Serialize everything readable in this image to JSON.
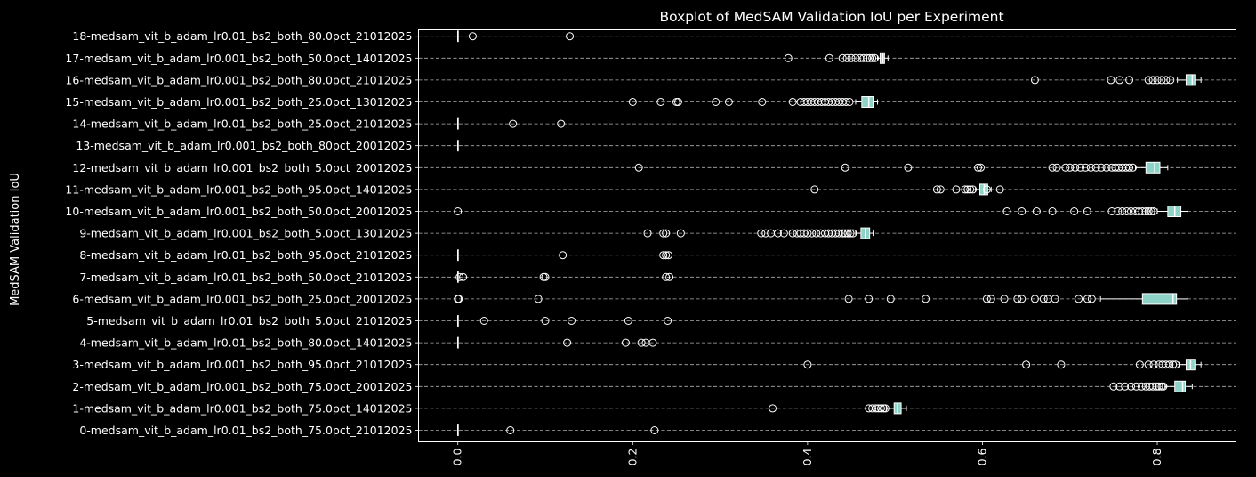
{
  "chart_data": {
    "type": "boxplot",
    "orientation": "horizontal",
    "title": "Boxplot of MedSAM Validation IoU per Experiment",
    "ylabel": "MedSAM Validation IoU",
    "xlabel": "",
    "xlim": [
      -0.045,
      0.89
    ],
    "x_ticks": [
      0.0,
      0.2,
      0.4,
      0.6,
      0.8
    ],
    "x_tick_labels": [
      "0.0",
      "0.2",
      "0.4",
      "0.6",
      "0.8"
    ],
    "x_tick_rotation": 90,
    "grid": "horizontal dashed",
    "box_color": "#8dd3c7",
    "categories": [
      "0-medsam_vit_b_adam_lr0.01_bs2_both_75.0pct_21012025",
      "1-medsam_vit_b_adam_lr0.001_bs2_both_75.0pct_14012025",
      "2-medsam_vit_b_adam_lr0.001_bs2_both_75.0pct_20012025",
      "3-medsam_vit_b_adam_lr0.001_bs2_both_95.0pct_21012025",
      "4-medsam_vit_b_adam_lr0.01_bs2_both_80.0pct_14012025",
      "5-medsam_vit_b_adam_lr0.01_bs2_both_5.0pct_21012025",
      "6-medsam_vit_b_adam_lr0.001_bs2_both_25.0pct_20012025",
      "7-medsam_vit_b_adam_lr0.01_bs2_both_50.0pct_21012025",
      "8-medsam_vit_b_adam_lr0.01_bs2_both_95.0pct_21012025",
      "9-medsam_vit_b_adam_lr0.001_bs2_both_5.0pct_13012025",
      "10-medsam_vit_b_adam_lr0.001_bs2_both_50.0pct_20012025",
      "11-medsam_vit_b_adam_lr0.001_bs2_both_95.0pct_14012025",
      "12-medsam_vit_b_adam_lr0.001_bs2_both_5.0pct_20012025",
      "13-medsam_vit_b_adam_lr0.001_bs2_both_80pct_20012025",
      "14-medsam_vit_b_adam_lr0.01_bs2_both_25.0pct_21012025",
      "15-medsam_vit_b_adam_lr0.001_bs2_both_25.0pct_13012025",
      "16-medsam_vit_b_adam_lr0.001_bs2_both_80.0pct_21012025",
      "17-medsam_vit_b_adam_lr0.001_bs2_both_50.0pct_14012025",
      "18-medsam_vit_b_adam_lr0.01_bs2_both_80.0pct_21012025"
    ],
    "boxes": [
      {
        "whislo": 0.0,
        "q1": 0.0,
        "med": 0.0,
        "q3": 0.0,
        "whishi": 0.0,
        "fliers": [
          0.06,
          0.225
        ]
      },
      {
        "whislo": 0.49,
        "q1": 0.499,
        "med": 0.503,
        "q3": 0.507,
        "whishi": 0.513,
        "fliers": [
          0.36,
          0.47,
          0.474,
          0.478,
          0.481,
          0.484,
          0.487,
          0.489
        ]
      },
      {
        "whislo": 0.81,
        "q1": 0.82,
        "med": 0.829,
        "q3": 0.832,
        "whishi": 0.84,
        "fliers": [
          0.75,
          0.757,
          0.763,
          0.77,
          0.776,
          0.782,
          0.787,
          0.791,
          0.795,
          0.799,
          0.802,
          0.805,
          0.807
        ]
      },
      {
        "whislo": 0.825,
        "q1": 0.833,
        "med": 0.838,
        "q3": 0.843,
        "whishi": 0.85,
        "fliers": [
          0.4,
          0.65,
          0.69,
          0.78,
          0.79,
          0.796,
          0.802,
          0.806,
          0.81,
          0.814,
          0.818,
          0.821
        ]
      },
      {
        "whislo": 0.0,
        "q1": 0.0,
        "med": 0.0,
        "q3": 0.0,
        "whishi": 0.0,
        "fliers": [
          0.125,
          0.192,
          0.21,
          0.215,
          0.223
        ]
      },
      {
        "whislo": 0.0,
        "q1": 0.0,
        "med": 0.0,
        "q3": 0.0,
        "whishi": 0.0,
        "fliers": [
          0.03,
          0.1,
          0.13,
          0.195,
          0.24
        ]
      },
      {
        "whislo": 0.735,
        "q1": 0.783,
        "med": 0.818,
        "q3": 0.822,
        "whishi": 0.835,
        "fliers": [
          0.0,
          0.001,
          0.092,
          0.447,
          0.47,
          0.495,
          0.535,
          0.605,
          0.61,
          0.625,
          0.64,
          0.645,
          0.66,
          0.67,
          0.675,
          0.683,
          0.71,
          0.72,
          0.725
        ]
      },
      {
        "whislo": 0.0,
        "q1": 0.0,
        "med": 0.0,
        "q3": 0.0,
        "whishi": 0.0,
        "fliers": [
          0.002,
          0.006,
          0.098,
          0.1,
          0.238,
          0.242
        ]
      },
      {
        "whislo": 0.0,
        "q1": 0.0,
        "med": 0.0,
        "q3": 0.0,
        "whishi": 0.0,
        "fliers": [
          0.12,
          0.235,
          0.238,
          0.241
        ]
      },
      {
        "whislo": 0.455,
        "q1": 0.461,
        "med": 0.466,
        "q3": 0.471,
        "whishi": 0.475,
        "fliers": [
          0.217,
          0.235,
          0.238,
          0.255,
          0.347,
          0.352,
          0.358,
          0.366,
          0.373,
          0.383,
          0.388,
          0.392,
          0.396,
          0.4,
          0.405,
          0.41,
          0.415,
          0.42,
          0.424,
          0.428,
          0.432,
          0.436,
          0.44,
          0.443,
          0.446,
          0.449,
          0.452
        ]
      },
      {
        "whislo": 0.8,
        "q1": 0.812,
        "med": 0.82,
        "q3": 0.827,
        "whishi": 0.835,
        "fliers": [
          0.0,
          0.628,
          0.645,
          0.662,
          0.68,
          0.705,
          0.72,
          0.748,
          0.755,
          0.76,
          0.765,
          0.77,
          0.775,
          0.779,
          0.783,
          0.787,
          0.79,
          0.793,
          0.796
        ]
      },
      {
        "whislo": 0.592,
        "q1": 0.597,
        "med": 0.602,
        "q3": 0.606,
        "whishi": 0.61,
        "fliers": [
          0.408,
          0.548,
          0.552,
          0.57,
          0.58,
          0.583,
          0.586,
          0.589,
          0.605,
          0.62
        ]
      },
      {
        "whislo": 0.775,
        "q1": 0.787,
        "med": 0.797,
        "q3": 0.803,
        "whishi": 0.812,
        "fliers": [
          0.207,
          0.443,
          0.515,
          0.595,
          0.598,
          0.68,
          0.685,
          0.695,
          0.7,
          0.706,
          0.712,
          0.718,
          0.724,
          0.73,
          0.736,
          0.742,
          0.748,
          0.752,
          0.756,
          0.76,
          0.764,
          0.768,
          0.772
        ]
      },
      {
        "whislo": 0.0,
        "q1": 0.0,
        "med": 0.0,
        "q3": 0.0,
        "whishi": 0.0,
        "fliers": []
      },
      {
        "whislo": 0.0,
        "q1": 0.0,
        "med": 0.0,
        "q3": 0.0,
        "whishi": 0.0,
        "fliers": [
          0.063,
          0.118
        ]
      },
      {
        "whislo": 0.455,
        "q1": 0.462,
        "med": 0.47,
        "q3": 0.475,
        "whishi": 0.48,
        "fliers": [
          0.2,
          0.232,
          0.25,
          0.252,
          0.295,
          0.31,
          0.348,
          0.383,
          0.392,
          0.396,
          0.4,
          0.404,
          0.408,
          0.412,
          0.416,
          0.42,
          0.424,
          0.428,
          0.432,
          0.436,
          0.44,
          0.444,
          0.448
        ]
      },
      {
        "whislo": 0.823,
        "q1": 0.833,
        "med": 0.84,
        "q3": 0.843,
        "whishi": 0.85,
        "fliers": [
          0.66,
          0.747,
          0.757,
          0.768,
          0.79,
          0.795,
          0.8,
          0.805,
          0.81,
          0.815
        ]
      },
      {
        "whislo": 0.48,
        "q1": 0.483,
        "med": 0.486,
        "q3": 0.488,
        "whishi": 0.492,
        "fliers": [
          0.378,
          0.425,
          0.44,
          0.445,
          0.45,
          0.455,
          0.46,
          0.464,
          0.468,
          0.471,
          0.474,
          0.477
        ]
      },
      {
        "whislo": 0.0,
        "q1": 0.0,
        "med": 0.0,
        "q3": 0.0,
        "whishi": 0.0,
        "fliers": [
          0.017,
          0.128
        ]
      }
    ]
  }
}
